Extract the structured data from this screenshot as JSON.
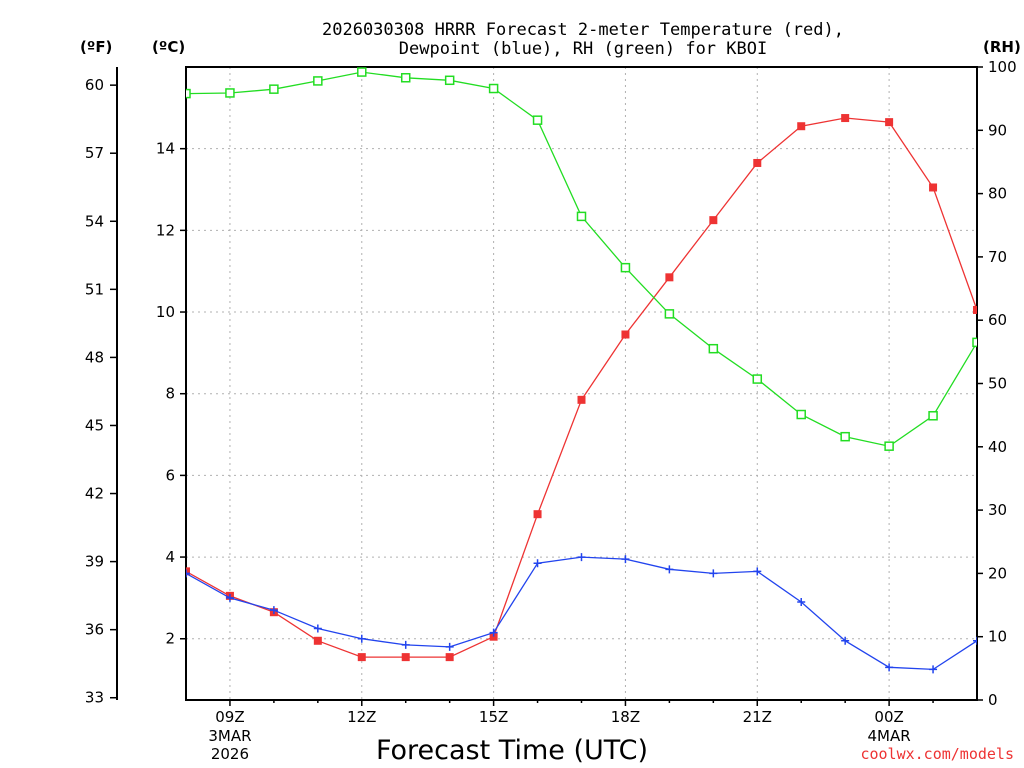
{
  "chart_data": {
    "type": "line",
    "title": [
      "2026030308 HRRR Forecast 2-meter Temperature (red),",
      "Dewpoint (blue), RH (green) for KBOI"
    ],
    "xlabel": "Forecast Time (UTC)",
    "credit": "coolwx.com/models",
    "units": {
      "fahrenheit": "(ºF)",
      "celsius": "(ºC)",
      "rh": "(RH)"
    },
    "x_range": [
      8,
      26
    ],
    "x_ticks": [
      {
        "x": 9,
        "label": "09Z",
        "sub": [
          "3MAR",
          "2026"
        ]
      },
      {
        "x": 12,
        "label": "12Z",
        "sub": []
      },
      {
        "x": 15,
        "label": "15Z",
        "sub": []
      },
      {
        "x": 18,
        "label": "18Z",
        "sub": []
      },
      {
        "x": 21,
        "label": "21Z",
        "sub": []
      },
      {
        "x": 24,
        "label": "00Z",
        "sub": [
          "4MAR"
        ]
      }
    ],
    "y_celsius": {
      "range": [
        0.5,
        16
      ],
      "ticks": [
        2,
        4,
        6,
        8,
        10,
        12,
        14
      ]
    },
    "y_fahrenheit": {
      "range": [
        32.9,
        60.8
      ],
      "ticks": [
        33,
        36,
        39,
        42,
        45,
        48,
        51,
        54,
        57,
        60
      ]
    },
    "y_rh": {
      "range": [
        0,
        100
      ],
      "ticks": [
        0,
        10,
        20,
        30,
        40,
        50,
        60,
        70,
        80,
        90,
        100
      ]
    },
    "x": [
      8,
      9,
      10,
      11,
      12,
      13,
      14,
      15,
      16,
      17,
      18,
      19,
      20,
      21,
      22,
      23,
      24,
      25,
      26
    ],
    "series": [
      {
        "name": "Temperature",
        "color": "#ee3333",
        "marker": "filled-square",
        "values": [
          3.65,
          3.05,
          2.65,
          1.95,
          1.55,
          1.55,
          1.55,
          2.05,
          5.05,
          7.85,
          9.45,
          10.85,
          12.25,
          13.65,
          14.55,
          14.75,
          14.65,
          13.05,
          10.05
        ]
      },
      {
        "name": "Dewpoint",
        "color": "#2244ee",
        "marker": "plus",
        "values": [
          3.6,
          3.0,
          2.7,
          2.25,
          2.0,
          1.85,
          1.8,
          2.15,
          3.85,
          4.0,
          3.95,
          3.7,
          3.6,
          3.65,
          2.9,
          1.95,
          1.3,
          1.25,
          1.95
        ]
      },
      {
        "name": "RH",
        "color": "#22dd22",
        "marker": "open-square",
        "values": [
          95.8,
          95.9,
          96.5,
          97.8,
          99.2,
          98.3,
          97.9,
          96.6,
          91.6,
          76.4,
          68.3,
          61.0,
          55.5,
          50.7,
          45.1,
          41.6,
          40.1,
          44.9,
          56.5
        ]
      }
    ]
  }
}
